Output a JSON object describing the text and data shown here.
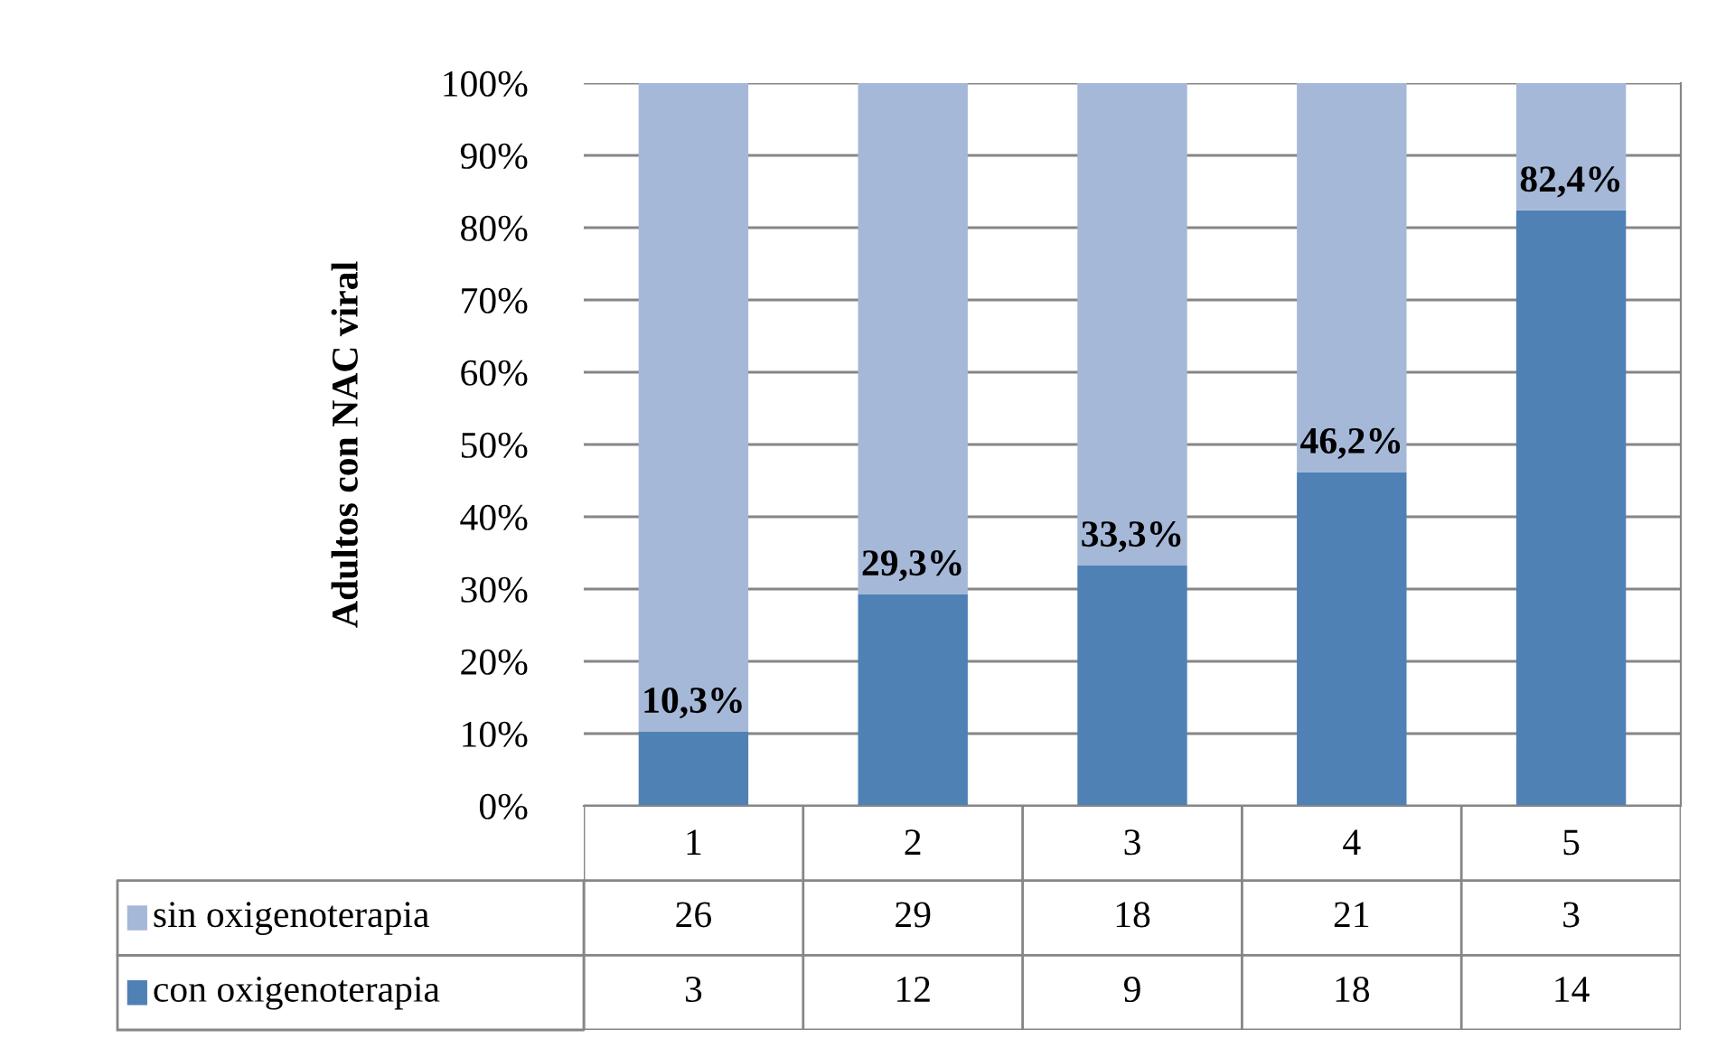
{
  "chart_data": {
    "type": "bar",
    "ylabel": "Adultos con NAC viral",
    "categories": [
      "1",
      "2",
      "3",
      "4",
      "5"
    ],
    "stacked": true,
    "grid": "y",
    "legend": "bottom",
    "ylim": [
      0,
      100
    ],
    "yticks": [
      {
        "value": 0,
        "label": "0%"
      },
      {
        "value": 10,
        "label": "10%"
      },
      {
        "value": 20,
        "label": "20%"
      },
      {
        "value": 30,
        "label": "30%"
      },
      {
        "value": 40,
        "label": "40%"
      },
      {
        "value": 50,
        "label": "50%"
      },
      {
        "value": 60,
        "label": "60%"
      },
      {
        "value": 70,
        "label": "70%"
      },
      {
        "value": 80,
        "label": "80%"
      },
      {
        "value": 90,
        "label": "90%"
      },
      {
        "value": 100,
        "label": "100%"
      }
    ],
    "series": [
      {
        "name": "con oxigenoterapia",
        "color": "#4f81b5",
        "values": [
          10.3,
          29.3,
          33.3,
          46.2,
          82.4
        ],
        "value_labels": [
          "10,3%",
          "29,3%",
          "33,3%",
          "46,2%",
          "82,4%"
        ]
      },
      {
        "name": "sin oxigenoterapia",
        "color": "#a5b8d8",
        "values": [
          89.7,
          70.7,
          66.7,
          53.8,
          17.6
        ]
      }
    ],
    "annotations": [
      "26",
      "29",
      "18",
      "21",
      "3",
      "3",
      "12",
      "9",
      "18",
      "14"
    ]
  }
}
